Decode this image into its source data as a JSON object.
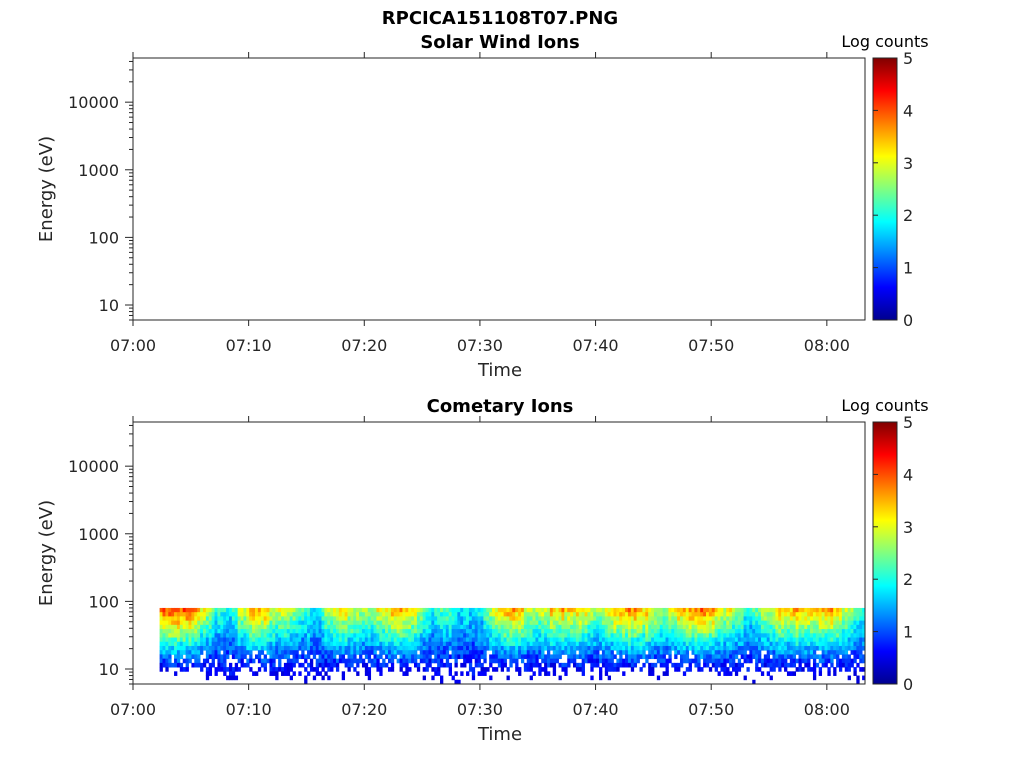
{
  "figure_title": "RPCICA151108T07.PNG",
  "colormap": [
    "#00008f",
    "#0000ff",
    "#0080ff",
    "#00ffff",
    "#80ff80",
    "#ffff00",
    "#ff8000",
    "#ff0000",
    "#800000"
  ],
  "chart_data": [
    {
      "type": "heatmap",
      "title": "Solar Wind Ions",
      "xlabel": "Time",
      "ylabel": "Energy (eV)",
      "x_ticks": [
        "07:00",
        "07:10",
        "07:20",
        "07:30",
        "07:40",
        "07:50",
        "08:00"
      ],
      "y_ticks": [
        "10",
        "100",
        "1000",
        "10000"
      ],
      "y_scale": "log",
      "ylim": [
        6,
        45000
      ],
      "xlim_minutes": [
        0,
        63.3
      ],
      "colorbar": {
        "label": "Log counts",
        "ticks": [
          "0",
          "1",
          "2",
          "3",
          "4",
          "5"
        ],
        "range": [
          0,
          5
        ]
      },
      "data": "no counts"
    },
    {
      "type": "heatmap",
      "title": "Cometary Ions",
      "xlabel": "Time",
      "ylabel": "Energy (eV)",
      "x_ticks": [
        "07:00",
        "07:10",
        "07:20",
        "07:30",
        "07:40",
        "07:50",
        "08:00"
      ],
      "y_ticks": [
        "10",
        "100",
        "1000",
        "10000"
      ],
      "y_scale": "log",
      "ylim": [
        6,
        45000
      ],
      "xlim_minutes": [
        0,
        63.3
      ],
      "colorbar": {
        "label": "Log counts",
        "ticks": [
          "0",
          "1",
          "2",
          "3",
          "4",
          "5"
        ],
        "range": [
          0,
          5
        ]
      },
      "data_extent": {
        "start_minute": 2.3,
        "end_minute": 63.3,
        "energy_max_eV": 80,
        "energy_min_eV": 6
      },
      "peak_log_counts_by_minute": [
        {
          "minute": 3,
          "value": 3.9
        },
        {
          "minute": 4,
          "value": 4.0
        },
        {
          "minute": 5,
          "value": 3.8
        },
        {
          "minute": 6,
          "value": 3.0
        },
        {
          "minute": 7,
          "value": 2.2
        },
        {
          "minute": 8,
          "value": 1.8
        },
        {
          "minute": 9,
          "value": 2.6
        },
        {
          "minute": 10,
          "value": 3.4
        },
        {
          "minute": 11,
          "value": 3.6
        },
        {
          "minute": 12,
          "value": 3.0
        },
        {
          "minute": 13,
          "value": 2.8
        },
        {
          "minute": 14,
          "value": 2.5
        },
        {
          "minute": 15,
          "value": 2.2
        },
        {
          "minute": 16,
          "value": 2.0
        },
        {
          "minute": 17,
          "value": 2.8
        },
        {
          "minute": 18,
          "value": 3.2
        },
        {
          "minute": 19,
          "value": 3.0
        },
        {
          "minute": 20,
          "value": 2.6
        },
        {
          "minute": 21,
          "value": 2.8
        },
        {
          "minute": 22,
          "value": 3.4
        },
        {
          "minute": 23,
          "value": 3.7
        },
        {
          "minute": 24,
          "value": 3.2
        },
        {
          "minute": 25,
          "value": 2.4
        },
        {
          "minute": 26,
          "value": 2.1
        },
        {
          "minute": 27,
          "value": 2.4
        },
        {
          "minute": 28,
          "value": 2.0
        },
        {
          "minute": 29,
          "value": 1.8
        },
        {
          "minute": 30,
          "value": 2.0
        },
        {
          "minute": 31,
          "value": 2.8
        },
        {
          "minute": 32,
          "value": 3.4
        },
        {
          "minute": 33,
          "value": 3.5
        },
        {
          "minute": 34,
          "value": 3.0
        },
        {
          "minute": 35,
          "value": 2.8
        },
        {
          "minute": 36,
          "value": 3.2
        },
        {
          "minute": 37,
          "value": 3.4
        },
        {
          "minute": 38,
          "value": 3.3
        },
        {
          "minute": 39,
          "value": 3.0
        },
        {
          "minute": 40,
          "value": 2.8
        },
        {
          "minute": 41,
          "value": 3.2
        },
        {
          "minute": 42,
          "value": 3.6
        },
        {
          "minute": 43,
          "value": 3.8
        },
        {
          "minute": 44,
          "value": 3.5
        },
        {
          "minute": 45,
          "value": 3.0
        },
        {
          "minute": 46,
          "value": 2.6
        },
        {
          "minute": 47,
          "value": 3.2
        },
        {
          "minute": 48,
          "value": 3.7
        },
        {
          "minute": 49,
          "value": 3.8
        },
        {
          "minute": 50,
          "value": 3.5
        },
        {
          "minute": 51,
          "value": 3.0
        },
        {
          "minute": 52,
          "value": 2.8
        },
        {
          "minute": 53,
          "value": 2.0
        },
        {
          "minute": 54,
          "value": 2.4
        },
        {
          "minute": 55,
          "value": 3.0
        },
        {
          "minute": 56,
          "value": 3.4
        },
        {
          "minute": 57,
          "value": 3.5
        },
        {
          "minute": 58,
          "value": 3.3
        },
        {
          "minute": 59,
          "value": 3.4
        },
        {
          "minute": 60,
          "value": 3.6
        },
        {
          "minute": 61,
          "value": 3.3
        },
        {
          "minute": 62,
          "value": 2.6
        },
        {
          "minute": 63,
          "value": 2.0
        }
      ]
    }
  ]
}
